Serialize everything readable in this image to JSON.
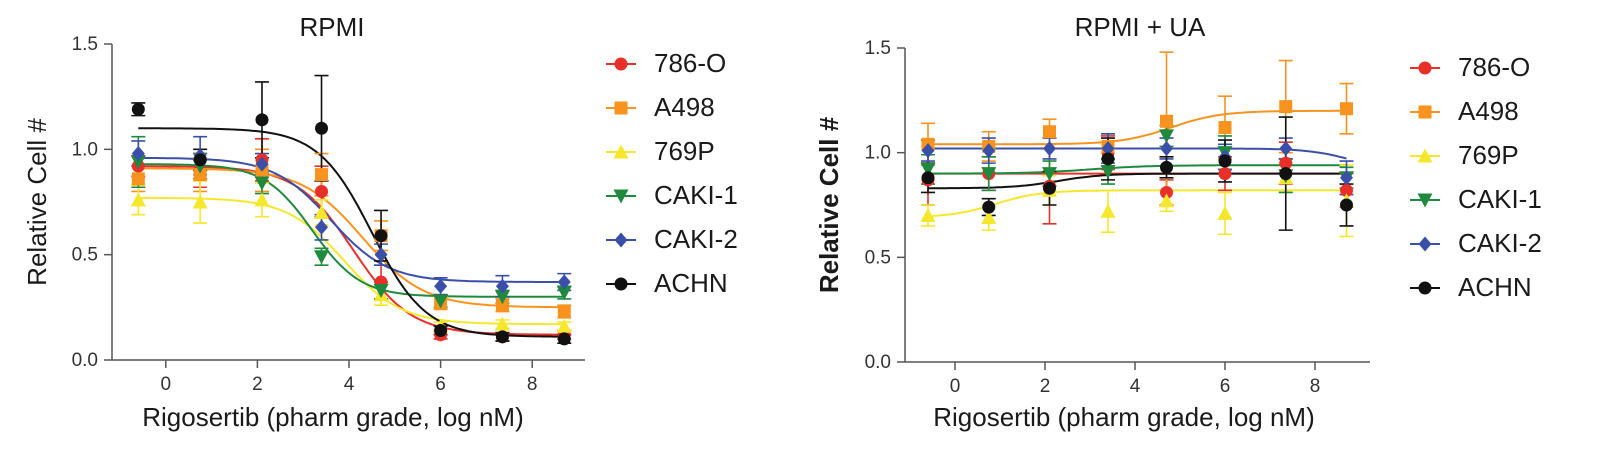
{
  "chart_data": [
    {
      "type": "scatter",
      "title": "RPMI",
      "xlabel": "Rigosertib (pharm grade, log nM)",
      "ylabel": "Relative Cell #",
      "xlim": [
        -1,
        9
      ],
      "ylim": [
        0,
        1.5
      ],
      "xticks": [
        0,
        2,
        4,
        6,
        8
      ],
      "yticks": [
        "0.0",
        "0.5",
        "1.0",
        "1.5"
      ],
      "x": [
        -0.6,
        0.75,
        2.1,
        3.4,
        4.7,
        6.0,
        7.35,
        8.7
      ],
      "legend": "right",
      "series": [
        {
          "name": "786-O",
          "color": "#e8302a",
          "marker": "circle",
          "values": [
            0.92,
            0.9,
            0.95,
            0.8,
            0.37,
            0.12,
            0.11,
            0.12
          ],
          "err": [
            0.05,
            0.08,
            0.1,
            0.12,
            0.08,
            0.02,
            0.02,
            0.02
          ],
          "fit": {
            "top": 0.92,
            "bottom": 0.12,
            "mid": 4.1,
            "slope": 1.6
          }
        },
        {
          "name": "A498",
          "color": "#f7931e",
          "marker": "square",
          "values": [
            0.86,
            0.88,
            0.9,
            0.88,
            0.59,
            0.27,
            0.26,
            0.23
          ],
          "err": [
            0.06,
            0.08,
            0.1,
            0.1,
            0.07,
            0.03,
            0.03,
            0.03
          ],
          "fit": {
            "top": 0.91,
            "bottom": 0.25,
            "mid": 4.3,
            "slope": 1.5
          }
        },
        {
          "name": "769P",
          "color": "#f5e82c",
          "marker": "triangle",
          "values": [
            0.76,
            0.75,
            0.76,
            0.7,
            0.31,
            0.16,
            0.17,
            0.16
          ],
          "err": [
            0.07,
            0.1,
            0.08,
            0.06,
            0.05,
            0.02,
            0.02,
            0.02
          ],
          "fit": {
            "top": 0.77,
            "bottom": 0.17,
            "mid": 3.9,
            "slope": 1.6
          }
        },
        {
          "name": "CAKI-1",
          "color": "#1f8a3e",
          "marker": "tri-down",
          "values": [
            0.94,
            0.92,
            0.84,
            0.49,
            0.33,
            0.28,
            0.3,
            0.32
          ],
          "err": [
            0.12,
            0.06,
            0.05,
            0.04,
            0.04,
            0.03,
            0.03,
            0.03
          ],
          "fit": {
            "top": 0.93,
            "bottom": 0.3,
            "mid": 3.2,
            "slope": 1.9
          }
        },
        {
          "name": "CAKI-2",
          "color": "#3a4fa8",
          "marker": "diamond",
          "values": [
            0.98,
            0.97,
            0.93,
            0.63,
            0.5,
            0.35,
            0.35,
            0.37
          ],
          "err": [
            0.06,
            0.09,
            0.05,
            0.06,
            0.05,
            0.04,
            0.05,
            0.04
          ],
          "fit": {
            "top": 0.96,
            "bottom": 0.37,
            "mid": 3.6,
            "slope": 1.6
          }
        },
        {
          "name": "ACHN",
          "color": "#111111",
          "marker": "circle",
          "values": [
            1.19,
            0.95,
            1.14,
            1.1,
            0.59,
            0.14,
            0.11,
            0.1
          ],
          "err": [
            0.03,
            0.05,
            0.18,
            0.25,
            0.12,
            0.02,
            0.02,
            0.02
          ],
          "fit": {
            "top": 1.1,
            "bottom": 0.11,
            "mid": 4.5,
            "slope": 1.7
          }
        }
      ]
    },
    {
      "type": "scatter",
      "title": "RPMI + UA",
      "xlabel": "Rigosertib (pharm grade, log nM)",
      "ylabel": "Relative Cell #",
      "xlim": [
        -1,
        9
      ],
      "ylim": [
        0,
        1.5
      ],
      "xticks": [
        0,
        2,
        4,
        6,
        8
      ],
      "yticks": [
        "0.0",
        "0.5",
        "1.0",
        "1.5"
      ],
      "x": [
        -0.6,
        0.75,
        2.1,
        3.4,
        4.7,
        6.0,
        7.35,
        8.7
      ],
      "legend": "right",
      "series": [
        {
          "name": "786-O",
          "color": "#e8302a",
          "marker": "circle",
          "values": [
            0.87,
            0.9,
            0.84,
            1.0,
            0.81,
            0.9,
            0.95,
            0.82
          ],
          "err": [
            0.12,
            0.08,
            0.18,
            0.08,
            0.06,
            0.08,
            0.1,
            0.08
          ],
          "fit": {
            "top": 0.9,
            "bottom": 0.9,
            "mid": 4.0,
            "slope": 1.0
          }
        },
        {
          "name": "A498",
          "color": "#f7931e",
          "marker": "square",
          "values": [
            1.04,
            1.03,
            1.1,
            1.03,
            1.15,
            1.12,
            1.22,
            1.21
          ],
          "err": [
            0.1,
            0.07,
            0.06,
            0.06,
            0.33,
            0.15,
            0.22,
            0.12
          ],
          "fit": {
            "top": 1.04,
            "bottom": 1.2,
            "mid": 4.8,
            "slope": 1.8
          }
        },
        {
          "name": "769P",
          "color": "#f5e82c",
          "marker": "triangle",
          "values": [
            0.7,
            0.69,
            0.82,
            0.72,
            0.77,
            0.71,
            0.88,
            0.77
          ],
          "err": [
            0.05,
            0.06,
            0.07,
            0.1,
            0.05,
            0.1,
            0.07,
            0.17
          ],
          "fit": {
            "top": 0.69,
            "bottom": 0.82,
            "mid": 0.9,
            "slope": 2.0
          }
        },
        {
          "name": "CAKI-1",
          "color": "#1f8a3e",
          "marker": "tri-down",
          "values": [
            0.92,
            0.9,
            0.9,
            0.91,
            1.08,
            1.0,
            0.89,
            0.88
          ],
          "err": [
            0.07,
            0.08,
            0.06,
            0.06,
            0.05,
            0.08,
            0.08,
            0.05
          ],
          "fit": {
            "top": 0.9,
            "bottom": 0.94,
            "mid": 3.0,
            "slope": 1.5
          }
        },
        {
          "name": "CAKI-2",
          "color": "#3a4fa8",
          "marker": "diamond",
          "values": [
            1.01,
            1.01,
            1.02,
            1.02,
            1.02,
            0.98,
            1.02,
            0.88
          ],
          "err": [
            0.05,
            0.06,
            0.05,
            0.07,
            0.05,
            0.06,
            0.05,
            0.08
          ],
          "fit": {
            "top": 1.02,
            "bottom": 0.9,
            "mid": 8.9,
            "slope": 2.0
          }
        },
        {
          "name": "ACHN",
          "color": "#111111",
          "marker": "circle",
          "values": [
            0.88,
            0.74,
            0.83,
            0.97,
            0.93,
            0.96,
            0.9,
            0.75
          ],
          "err": [
            0.07,
            0.04,
            0.08,
            0.1,
            0.05,
            0.1,
            0.27,
            0.1
          ],
          "fit": {
            "top": 0.83,
            "bottom": 0.9,
            "mid": 2.3,
            "slope": 2.0
          }
        }
      ]
    }
  ]
}
